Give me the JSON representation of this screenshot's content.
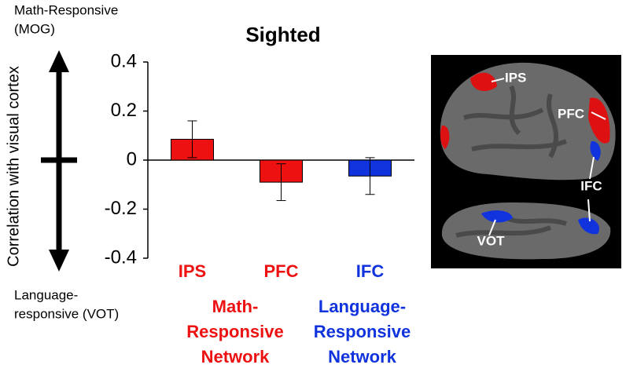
{
  "chart_data": {
    "type": "bar",
    "title": "Sighted",
    "y_label": "Correlation with visual cortex",
    "top_label": [
      "Math-Responsive",
      "(MOG)"
    ],
    "bottom_label": [
      "Language-",
      "responsive (VOT)"
    ],
    "categories": [
      "IPS",
      "PFC",
      "IFC"
    ],
    "values": [
      0.085,
      -0.09,
      -0.065
    ],
    "errors": [
      0.075,
      0.075,
      0.075
    ],
    "colors": [
      "#ee1111",
      "#ee1111",
      "#1133dd"
    ],
    "ylim": [
      -0.4,
      0.4
    ],
    "yticks": [
      0.4,
      0.2,
      0,
      -0.2,
      -0.4
    ],
    "groups": [
      {
        "lines": [
          "Math-",
          "Responsive",
          "Network"
        ],
        "color": "#ee1111"
      },
      {
        "lines": [
          "Language-",
          "Responsive",
          "Network"
        ],
        "color": "#1133dd"
      }
    ],
    "annotations": [
      "IPS",
      "PFC",
      "IFC",
      "VOT"
    ]
  }
}
